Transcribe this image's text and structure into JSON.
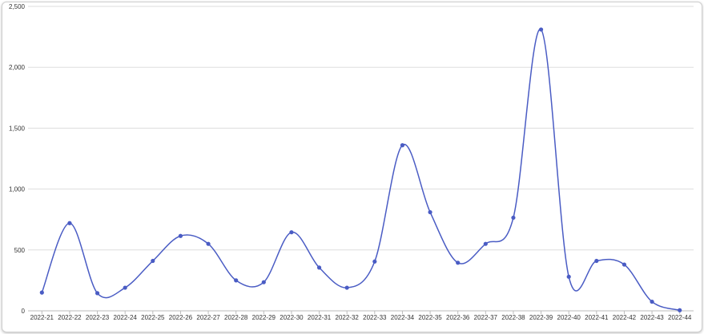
{
  "chart_data": {
    "type": "line",
    "title": "",
    "xlabel": "",
    "ylabel": "",
    "ylim": [
      0,
      2500
    ],
    "yticks": [
      0,
      500,
      1000,
      1500,
      2000,
      2500
    ],
    "ytick_labels": [
      "0",
      "500",
      "1,000",
      "1,500",
      "2,000",
      "2,500"
    ],
    "grid": true,
    "smooth": true,
    "categories": [
      "2022-21",
      "2022-22",
      "2022-23",
      "2022-24",
      "2022-25",
      "2022-26",
      "2022-27",
      "2022-28",
      "2022-29",
      "2022-30",
      "2022-31",
      "2022-32",
      "2022-33",
      "2022-34",
      "2022-35",
      "2022-36",
      "2022-37",
      "2022-38",
      "2022-39",
      "2022-40",
      "2022-41",
      "2022-42",
      "2022-43",
      "2022-44"
    ],
    "series": [
      {
        "color": "#4a5cc4",
        "values": [
          150,
          720,
          145,
          190,
          410,
          615,
          550,
          250,
          235,
          645,
          355,
          190,
          405,
          1360,
          810,
          395,
          550,
          765,
          2310,
          280,
          410,
          380,
          75,
          5
        ]
      }
    ]
  }
}
